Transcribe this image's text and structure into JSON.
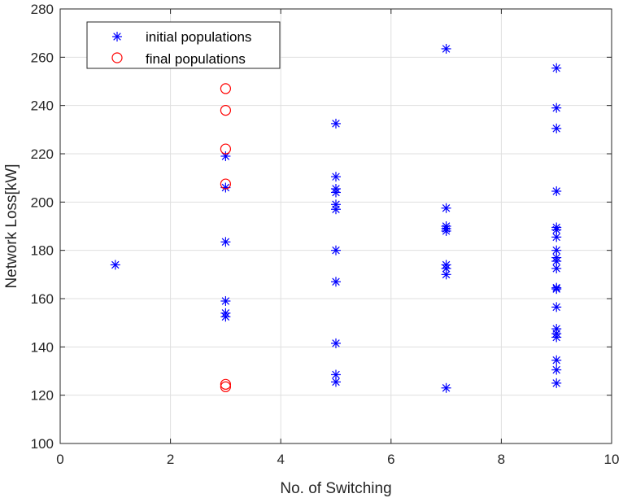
{
  "chart_data": {
    "type": "scatter",
    "xlabel": "No. of Switching",
    "ylabel": "Network Loss[kW]",
    "xlim": [
      0,
      10
    ],
    "ylim": [
      100,
      280
    ],
    "xticks": [
      0,
      2,
      4,
      6,
      8,
      10
    ],
    "yticks": [
      100,
      120,
      140,
      160,
      180,
      200,
      220,
      240,
      260,
      280
    ],
    "grid": true,
    "legend_position": "top-left",
    "series": [
      {
        "name": "initial populations",
        "marker": "asterisk",
        "color": "#0000ff",
        "points": [
          [
            1,
            174
          ],
          [
            3,
            219
          ],
          [
            3,
            206
          ],
          [
            3,
            183.5
          ],
          [
            3,
            159
          ],
          [
            3,
            154
          ],
          [
            3,
            152.5
          ],
          [
            5,
            232.5
          ],
          [
            5,
            210.5
          ],
          [
            5,
            205.5
          ],
          [
            5,
            204
          ],
          [
            5,
            199
          ],
          [
            5,
            197
          ],
          [
            5,
            180
          ],
          [
            5,
            167
          ],
          [
            5,
            141.5
          ],
          [
            5,
            128.5
          ],
          [
            5,
            125.5
          ],
          [
            7,
            263.5
          ],
          [
            7,
            197.5
          ],
          [
            7,
            190
          ],
          [
            7,
            189
          ],
          [
            7,
            188
          ],
          [
            7,
            174
          ],
          [
            7,
            172.5
          ],
          [
            7,
            170
          ],
          [
            7,
            123
          ],
          [
            9,
            255.5
          ],
          [
            9,
            239
          ],
          [
            9,
            230.5
          ],
          [
            9,
            204.5
          ],
          [
            9,
            189.5
          ],
          [
            9,
            188.5
          ],
          [
            9,
            185.5
          ],
          [
            9,
            180
          ],
          [
            9,
            177
          ],
          [
            9,
            175.5
          ],
          [
            9,
            172.5
          ],
          [
            9,
            164.5
          ],
          [
            9,
            164
          ],
          [
            9,
            156.5
          ],
          [
            9,
            147.5
          ],
          [
            9,
            145.5
          ],
          [
            9,
            144
          ],
          [
            9,
            134.5
          ],
          [
            9,
            130.5
          ],
          [
            9,
            125
          ]
        ]
      },
      {
        "name": "final populations",
        "marker": "circle",
        "color": "#ff0000",
        "points": [
          [
            3,
            247
          ],
          [
            3,
            238
          ],
          [
            3,
            222
          ],
          [
            3,
            207.5
          ],
          [
            3,
            124.5
          ],
          [
            3,
            123.5
          ]
        ]
      }
    ]
  }
}
